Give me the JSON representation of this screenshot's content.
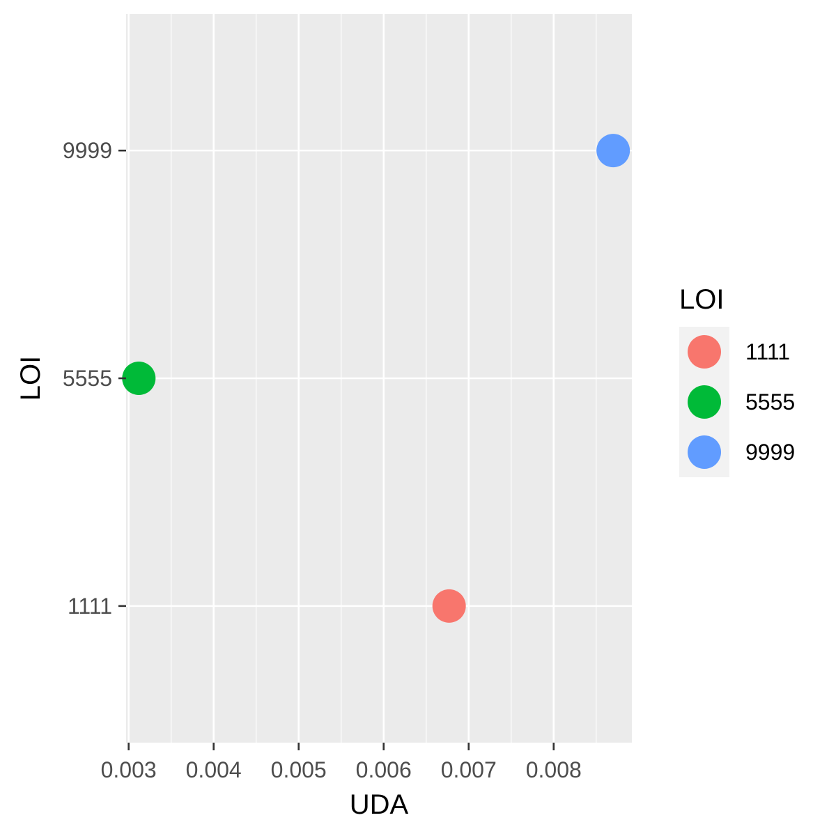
{
  "chart_data": {
    "type": "scatter",
    "title": "",
    "xlabel": "UDA",
    "ylabel": "LOI",
    "xlim": [
      0.00297,
      0.00892
    ],
    "x_ticks": [
      0.003,
      0.004,
      0.005,
      0.006,
      0.007,
      0.008
    ],
    "x_tick_labels": [
      "0.003",
      "0.004",
      "0.005",
      "0.006",
      "0.007",
      "0.008"
    ],
    "y_categories": [
      "1111",
      "5555",
      "9999"
    ],
    "grid": true,
    "legend_position": "right",
    "legend": {
      "title": "LOI",
      "entries": [
        "1111",
        "5555",
        "9999"
      ]
    },
    "series": [
      {
        "name": "1111",
        "x": [
          0.00677
        ],
        "y": [
          "1111"
        ],
        "color": "#F8766D"
      },
      {
        "name": "5555",
        "x": [
          0.00312
        ],
        "y": [
          "5555"
        ],
        "color": "#00BA38"
      },
      {
        "name": "9999",
        "x": [
          0.0087
        ],
        "y": [
          "9999"
        ],
        "color": "#619CFF"
      }
    ],
    "panel_background": "#EBEBEB",
    "grid_color": "#FFFFFF"
  }
}
